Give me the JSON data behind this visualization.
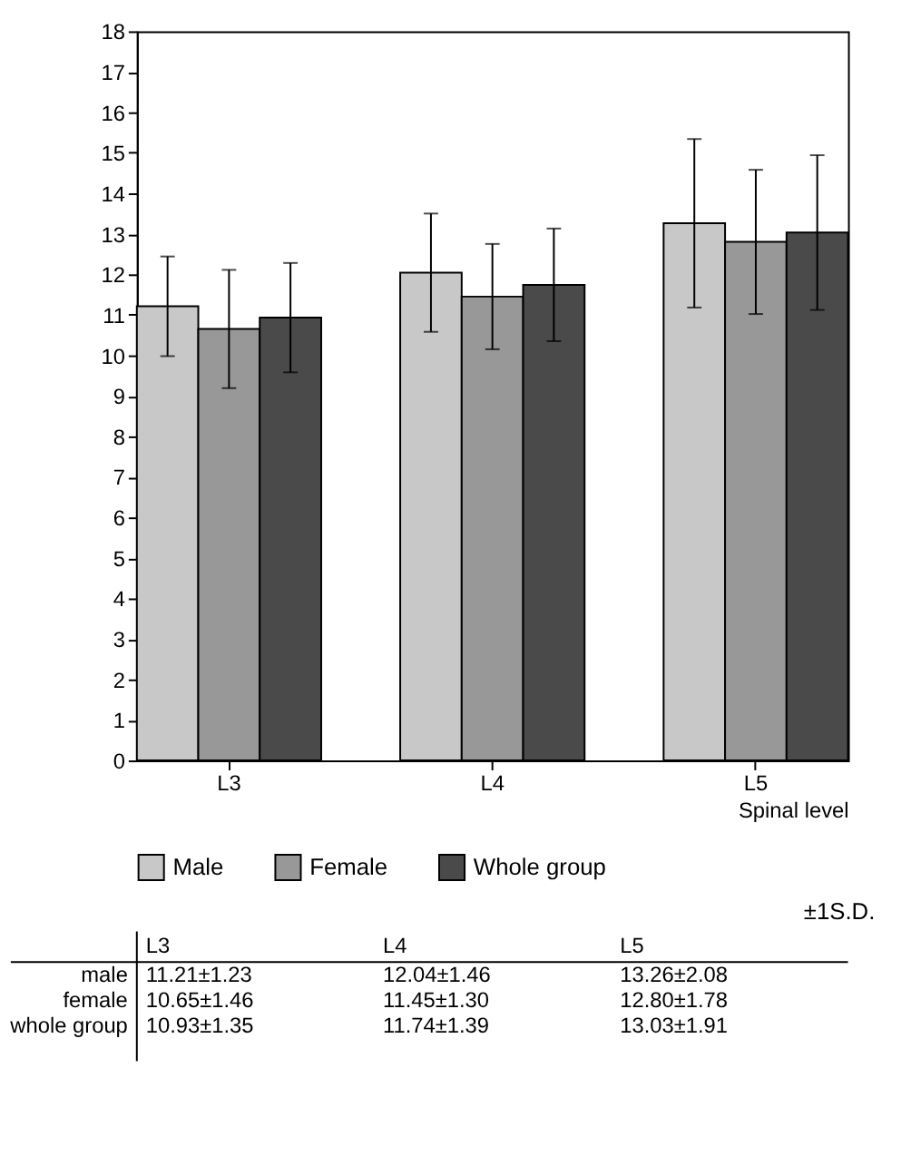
{
  "chart_data": {
    "type": "bar",
    "categories": [
      "L3",
      "L4",
      "L5"
    ],
    "xlabel": "Spinal level",
    "ylim": [
      0,
      18
    ],
    "yticks": [
      0,
      1,
      2,
      3,
      4,
      5,
      6,
      7,
      8,
      9,
      10,
      11,
      12,
      13,
      14,
      15,
      16,
      17,
      18
    ],
    "grid": false,
    "legend": "bottom",
    "data_labels": false,
    "series": [
      {
        "name": "Male",
        "color": "#c8c8c8",
        "values": [
          11.21,
          12.04,
          13.26
        ],
        "errors": [
          1.23,
          1.46,
          2.08
        ],
        "value_labels": [
          "11.21±1.23",
          "12.04±1.46",
          "13.26±2.08"
        ]
      },
      {
        "name": "Female",
        "color": "#989898",
        "values": [
          10.65,
          11.45,
          12.8
        ],
        "errors": [
          1.46,
          1.3,
          1.78
        ],
        "value_labels": [
          "10.65±1.46",
          "11.45±1.30",
          "12.80±1.78"
        ]
      },
      {
        "name": "Whole group",
        "color": "#4a4a4a",
        "values": [
          10.93,
          11.74,
          13.03
        ],
        "errors": [
          1.35,
          1.39,
          1.91
        ],
        "value_labels": [
          "10.93±1.35",
          "11.74±1.39",
          "13.03±1.91"
        ]
      }
    ],
    "annotations": [
      "male",
      "female",
      "whole group",
      "±1S.D."
    ]
  }
}
